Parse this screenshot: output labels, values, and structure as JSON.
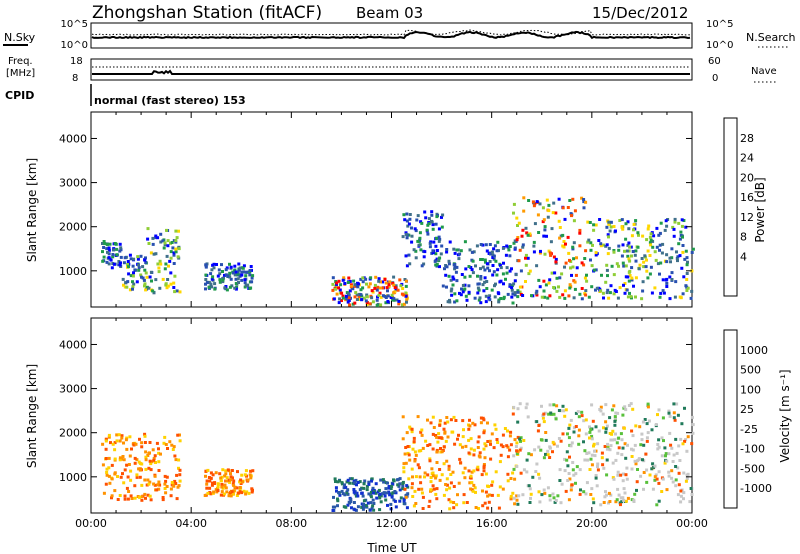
{
  "header": {
    "station_title": "Zhongshan Station (fitACF)",
    "beam": "Beam 03",
    "date": "15/Dec/2012"
  },
  "strip_panels": {
    "nsky_label": "N.Sky",
    "nsky_ticks": [
      "10^5",
      "10^0"
    ],
    "nsearch_label": "N.Search",
    "nsearch_ticks": [
      "10^5",
      "10^0"
    ],
    "freq_label_1": "Freq.",
    "freq_label_2": "[MHz]",
    "freq_ticks": [
      "18",
      "8"
    ],
    "nave_label": "Nave",
    "nave_ticks": [
      "60",
      "0"
    ],
    "cpid_label": "CPID",
    "cpid_text": "normal (fast stereo) 153"
  },
  "chart_data": [
    {
      "type": "heatmap",
      "name": "power",
      "ylabel": "Slant Range [km]",
      "xlabel": "",
      "yticks": [
        "4000",
        "3000",
        "2000",
        "1000"
      ],
      "ylim": [
        180,
        4600
      ],
      "xlim_hours": [
        0,
        24
      ],
      "colorbar": {
        "label": "Power [dB]",
        "ticks": [
          "28",
          "24",
          "20",
          "16",
          "12",
          "8",
          "4"
        ],
        "colors": [
          "#ff0000",
          "#ff5000",
          "#ff9a00",
          "#ffd700",
          "#8fce36",
          "#1f9a4a",
          "#40708a",
          "#2850b0",
          "#0000ff"
        ]
      },
      "scatter_regions": [
        {
          "start_hour": 0.4,
          "end_hour": 1.2,
          "range_min": 1100,
          "range_max": 1700,
          "level": "low"
        },
        {
          "start_hour": 1.2,
          "end_hour": 2.2,
          "range_min": 600,
          "range_max": 1400,
          "level": "mid"
        },
        {
          "start_hour": 2.2,
          "end_hour": 3.5,
          "range_min": 500,
          "range_max": 2000,
          "level": "mid"
        },
        {
          "start_hour": 4.5,
          "end_hour": 6.4,
          "range_min": 600,
          "range_max": 1200,
          "level": "low"
        },
        {
          "start_hour": 9.6,
          "end_hour": 12.6,
          "range_min": 250,
          "range_max": 900,
          "level": "high"
        },
        {
          "start_hour": 12.4,
          "end_hour": 14.0,
          "range_min": 1100,
          "range_max": 2400,
          "level": "low"
        },
        {
          "start_hour": 14.0,
          "end_hour": 17.0,
          "range_min": 300,
          "range_max": 1700,
          "level": "low"
        },
        {
          "start_hour": 16.8,
          "end_hour": 19.8,
          "range_min": 400,
          "range_max": 2700,
          "level": "high"
        },
        {
          "start_hour": 19.8,
          "end_hour": 24.0,
          "range_min": 400,
          "range_max": 2200,
          "level": "mid"
        }
      ]
    },
    {
      "type": "heatmap",
      "name": "velocity",
      "ylabel": "Slant Range [km]",
      "xlabel": "Time UT",
      "xticks": [
        "00:00",
        "04:00",
        "08:00",
        "12:00",
        "16:00",
        "20:00",
        "00:00"
      ],
      "yticks": [
        "4000",
        "3000",
        "2000",
        "1000"
      ],
      "ylim": [
        180,
        4600
      ],
      "xlim_hours": [
        0,
        24
      ],
      "colorbar": {
        "label": "Velocity [m s⁻¹]",
        "ticks": [
          "1000",
          "500",
          "100",
          "25",
          "-25",
          "-100",
          "-500",
          "-1000"
        ],
        "colors": [
          "#1030d0",
          "#2a58a8",
          "#207a5a",
          "#58c03a",
          "#c8c8c8",
          "#ffd200",
          "#ff9200",
          "#ff5000",
          "#ff0000"
        ]
      },
      "scatter_regions": [
        {
          "start_hour": 0.4,
          "end_hour": 3.5,
          "range_min": 500,
          "range_max": 2000,
          "level": "negative"
        },
        {
          "start_hour": 4.5,
          "end_hour": 6.4,
          "range_min": 600,
          "range_max": 1200,
          "level": "negative"
        },
        {
          "start_hour": 9.6,
          "end_hour": 12.6,
          "range_min": 250,
          "range_max": 1000,
          "level": "positive"
        },
        {
          "start_hour": 12.4,
          "end_hour": 17.0,
          "range_min": 300,
          "range_max": 2400,
          "level": "negative"
        },
        {
          "start_hour": 16.8,
          "end_hour": 24.0,
          "range_min": 400,
          "range_max": 2700,
          "level": "mixed"
        }
      ]
    }
  ]
}
